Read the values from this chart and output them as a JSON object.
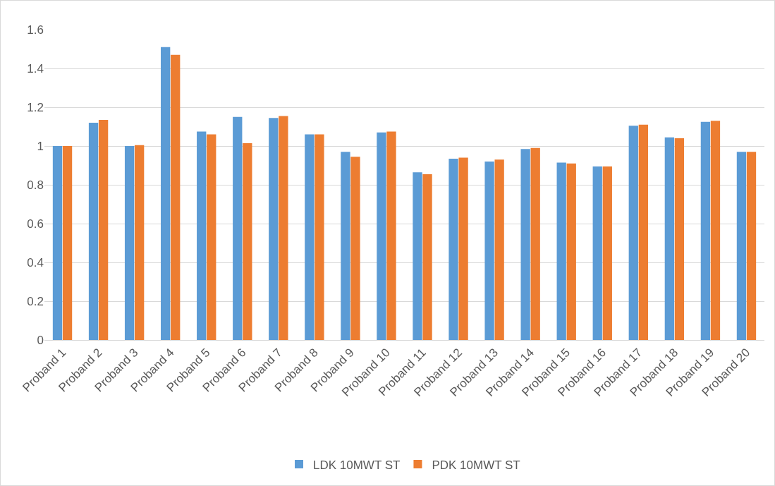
{
  "chart_data": {
    "type": "bar",
    "categories": [
      "Proband 1",
      "Proband 2",
      "Proband 3",
      "Proband 4",
      "Proband 5",
      "Proband 6",
      "Proband 7",
      "Proband 8",
      "Proband 9",
      "Proband 10",
      "Proband 11",
      "Proband 12",
      "Proband 13",
      "Proband 14",
      "Proband 15",
      "Proband 16",
      "Proband 17",
      "Proband 18",
      "Proband 19",
      "Proband 20"
    ],
    "series": [
      {
        "name": "LDK 10MWT ST",
        "color": "#5b9bd5",
        "values": [
          1.0,
          1.12,
          1.0,
          1.51,
          1.075,
          1.15,
          1.145,
          1.06,
          0.97,
          1.07,
          0.865,
          0.935,
          0.92,
          0.985,
          0.915,
          0.895,
          1.105,
          1.045,
          1.125,
          0.97
        ]
      },
      {
        "name": "PDK 10MWT ST",
        "color": "#ed7d31",
        "values": [
          1.0,
          1.135,
          1.005,
          1.47,
          1.06,
          1.015,
          1.155,
          1.06,
          0.945,
          1.075,
          0.855,
          0.94,
          0.93,
          0.99,
          0.91,
          0.895,
          1.11,
          1.04,
          1.13,
          0.97
        ]
      }
    ],
    "ylim": [
      0,
      1.6
    ],
    "yticks": [
      0,
      0.2,
      0.4,
      0.6,
      0.8,
      1,
      1.2,
      1.4,
      1.6
    ],
    "grid": "y",
    "legend": "bottom"
  }
}
